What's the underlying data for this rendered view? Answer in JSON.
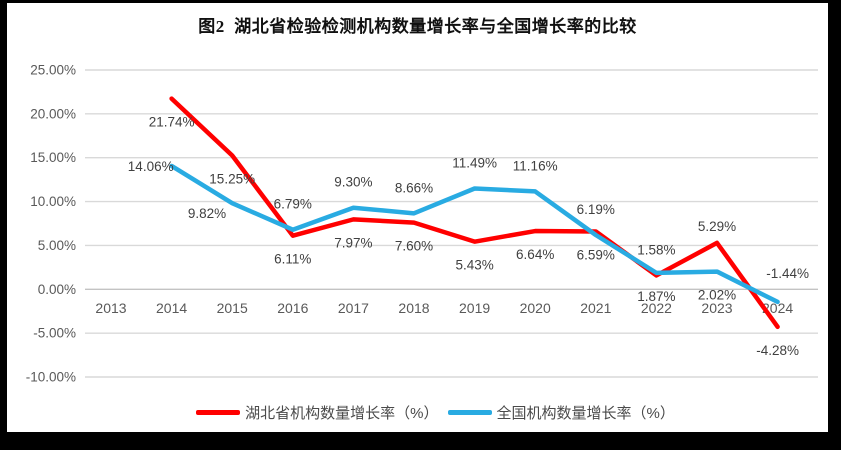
{
  "frame": {
    "background_color": "#000000",
    "card_color": "#FFFFFF"
  },
  "chart_data": {
    "type": "line",
    "title": "图2  湖北省检验检测机构数量增长率与全国增长率的比较",
    "categories": [
      "2013",
      "2014",
      "2015",
      "2016",
      "2017",
      "2018",
      "2019",
      "2020",
      "2021",
      "2022",
      "2023",
      "2024"
    ],
    "series": [
      {
        "name": "湖北省机构数量增长率（%）",
        "color": "#FF0000",
        "values": [
          null,
          21.74,
          15.25,
          6.11,
          7.97,
          7.6,
          5.43,
          6.64,
          6.59,
          1.58,
          5.29,
          -4.28
        ],
        "labels": [
          "",
          "21.74%",
          "15.25%",
          "6.11%",
          "7.97%",
          "7.60%",
          "5.43%",
          "6.64%",
          "6.59%",
          "1.58%",
          "5.29%",
          "-4.28%"
        ],
        "label_positions": [
          null,
          "below",
          "below",
          "below",
          "below",
          "below",
          "below",
          "below",
          "below",
          "above",
          "above-close",
          "below"
        ]
      },
      {
        "name": "全国机构数量增长率（%）",
        "color": "#29ABE2",
        "values": [
          null,
          14.06,
          9.82,
          6.79,
          9.3,
          8.66,
          11.49,
          11.16,
          6.19,
          1.87,
          2.02,
          -1.44
        ],
        "labels": [
          "",
          "14.06%",
          "9.82%",
          "6.79%",
          "9.30%",
          "8.66%",
          "11.49%",
          "11.16%",
          "6.19%",
          "1.87%",
          "2.02%",
          "-1.44%"
        ],
        "label_positions": [
          null,
          "left",
          "below-left",
          "above",
          "above",
          "above",
          "above",
          "above",
          "above",
          "below",
          "below",
          "above-right"
        ]
      }
    ],
    "y_axis": {
      "min": -10,
      "max": 25,
      "step": 5,
      "tick_labels": [
        "25.00%",
        "20.00%",
        "15.00%",
        "10.00%",
        "5.00%",
        "0.00%",
        "-5.00%",
        "-10.00%"
      ]
    },
    "grid": true,
    "legend_position": "bottom",
    "style": {
      "gridline_color": "#D9D9D9",
      "zero_line_color": "#C3C3C3",
      "axis_text_color": "#595959",
      "data_label_color": "#404040",
      "line_width": 4.5
    }
  }
}
